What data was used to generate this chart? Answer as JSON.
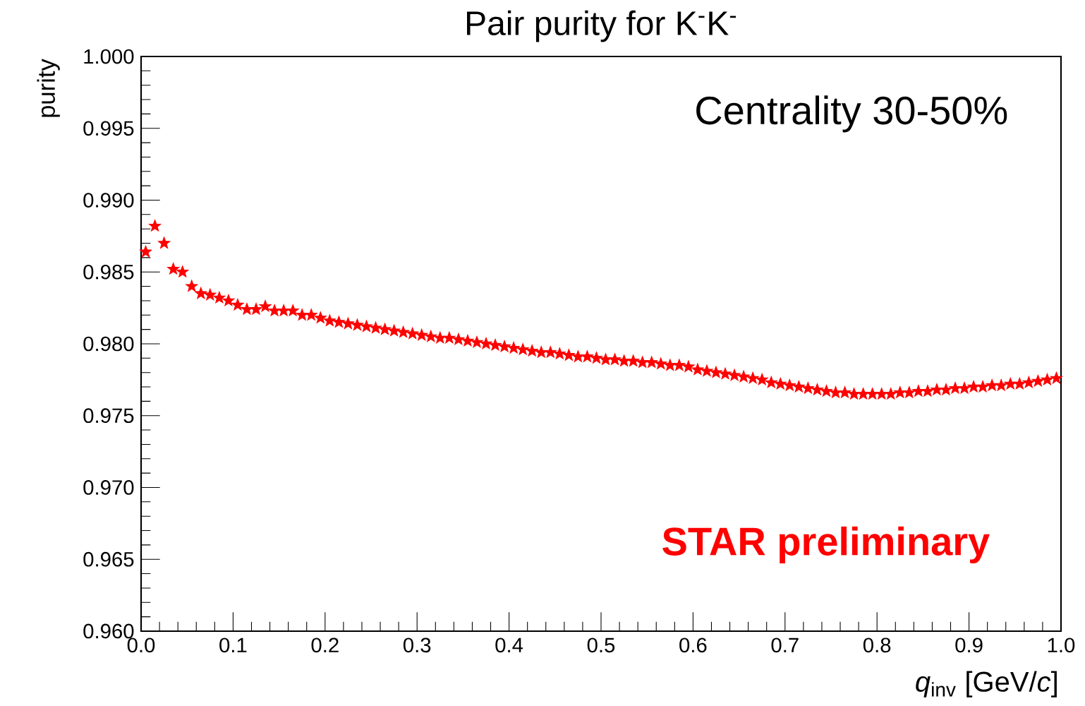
{
  "chart_data": {
    "type": "scatter",
    "title": "Pair purity for K$^{-}$K$^{-}$",
    "xlabel": "*q*$_{inv}$ [GeV/*c*]",
    "ylabel": "purity",
    "annotations": [
      "Centrality 30-50%",
      "**STAR preliminary**"
    ],
    "x": [
      0.005,
      0.015,
      0.025,
      0.035,
      0.045,
      0.055,
      0.065,
      0.075,
      0.085,
      0.095,
      0.105,
      0.115,
      0.125,
      0.135,
      0.145,
      0.155,
      0.165,
      0.175,
      0.185,
      0.195,
      0.205,
      0.215,
      0.225,
      0.235,
      0.245,
      0.255,
      0.265,
      0.275,
      0.285,
      0.295,
      0.305,
      0.315,
      0.325,
      0.335,
      0.345,
      0.355,
      0.365,
      0.375,
      0.385,
      0.395,
      0.405,
      0.415,
      0.425,
      0.435,
      0.445,
      0.455,
      0.465,
      0.475,
      0.485,
      0.495,
      0.505,
      0.515,
      0.525,
      0.535,
      0.545,
      0.555,
      0.565,
      0.575,
      0.585,
      0.595,
      0.605,
      0.615,
      0.625,
      0.635,
      0.645,
      0.655,
      0.665,
      0.675,
      0.685,
      0.695,
      0.705,
      0.715,
      0.725,
      0.735,
      0.745,
      0.755,
      0.765,
      0.775,
      0.785,
      0.795,
      0.805,
      0.815,
      0.825,
      0.835,
      0.845,
      0.855,
      0.865,
      0.875,
      0.885,
      0.895,
      0.905,
      0.915,
      0.925,
      0.935,
      0.945,
      0.955,
      0.965,
      0.975,
      0.985,
      0.995
    ],
    "series": [
      {
        "color": "#ff0000",
        "values": [
          0.9864,
          0.9882,
          0.987,
          0.9852,
          0.985,
          0.984,
          0.9835,
          0.9834,
          0.9832,
          0.983,
          0.9827,
          0.9824,
          0.9824,
          0.9826,
          0.9823,
          0.9823,
          0.9823,
          0.982,
          0.982,
          0.9818,
          0.9816,
          0.9815,
          0.9814,
          0.9813,
          0.9812,
          0.9811,
          0.981,
          0.9809,
          0.9808,
          0.9807,
          0.9806,
          0.9805,
          0.9804,
          0.9804,
          0.9803,
          0.9802,
          0.9801,
          0.98,
          0.9799,
          0.9798,
          0.9797,
          0.9796,
          0.9795,
          0.9794,
          0.9794,
          0.9793,
          0.9792,
          0.9791,
          0.9791,
          0.979,
          0.9789,
          0.9789,
          0.9788,
          0.9788,
          0.9787,
          0.9787,
          0.9786,
          0.9785,
          0.9785,
          0.9784,
          0.9782,
          0.9781,
          0.978,
          0.9779,
          0.9778,
          0.9777,
          0.9776,
          0.9775,
          0.9773,
          0.9772,
          0.9771,
          0.977,
          0.9769,
          0.9768,
          0.9767,
          0.9766,
          0.9766,
          0.9765,
          0.9765,
          0.9765,
          0.9765,
          0.9765,
          0.9766,
          0.9766,
          0.9767,
          0.9767,
          0.9768,
          0.9768,
          0.9769,
          0.9769,
          0.977,
          0.977,
          0.9771,
          0.9771,
          0.9772,
          0.9772,
          0.9773,
          0.9774,
          0.9775,
          0.9776
        ]
      }
    ],
    "xlim": [
      0,
      1
    ],
    "ylim": [
      0.96,
      1.0
    ],
    "xticks": [
      {
        "value": 0,
        "label": "0.0"
      },
      {
        "value": 0.1,
        "label": "0.1"
      },
      {
        "value": 0.2,
        "label": "0.2"
      },
      {
        "value": 0.3,
        "label": "0.3"
      },
      {
        "value": 0.4,
        "label": "0.4"
      },
      {
        "value": 0.5,
        "label": "0.5"
      },
      {
        "value": 0.6,
        "label": "0.6"
      },
      {
        "value": 0.7,
        "label": "0.7"
      },
      {
        "value": 0.8,
        "label": "0.8"
      },
      {
        "value": 0.9,
        "label": "0.9"
      },
      {
        "value": 1,
        "label": "1.0"
      }
    ],
    "yticks": [
      {
        "value": 0.96,
        "label": "0.960"
      },
      {
        "value": 0.965,
        "label": "0.965"
      },
      {
        "value": 0.97,
        "label": "0.970"
      },
      {
        "value": 0.975,
        "label": "0.975"
      },
      {
        "value": 0.98,
        "label": "0.980"
      },
      {
        "value": 0.985,
        "label": "0.985"
      },
      {
        "value": 0.99,
        "label": "0.990"
      },
      {
        "value": 0.995,
        "label": "0.995"
      },
      {
        "value": 1.0,
        "label": "1.000"
      }
    ],
    "marker": "star",
    "grid": false
  }
}
